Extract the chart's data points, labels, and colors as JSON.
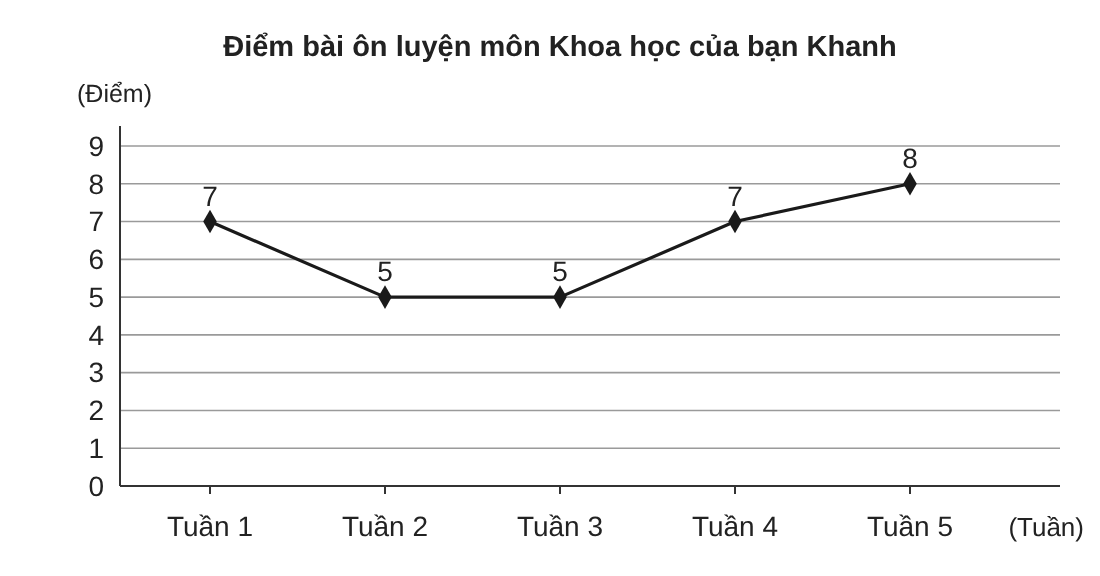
{
  "chart_data": {
    "type": "line",
    "title": "Điểm bài ôn luyện môn Khoa học của bạn Khanh",
    "ylabel": "(Điểm)",
    "xlabel": "(Tuần)",
    "categories": [
      "Tuần 1",
      "Tuần 2",
      "Tuần 3",
      "Tuần 4",
      "Tuần 5"
    ],
    "series": [
      {
        "color": "#1a1a1a",
        "values": [
          7,
          5,
          5,
          7,
          8
        ]
      }
    ],
    "ylim": [
      0,
      9
    ],
    "yticks": [
      0,
      1,
      2,
      3,
      4,
      5,
      6,
      7,
      8,
      9
    ],
    "grid": "y",
    "marker": "diamond",
    "data_labels": true
  }
}
